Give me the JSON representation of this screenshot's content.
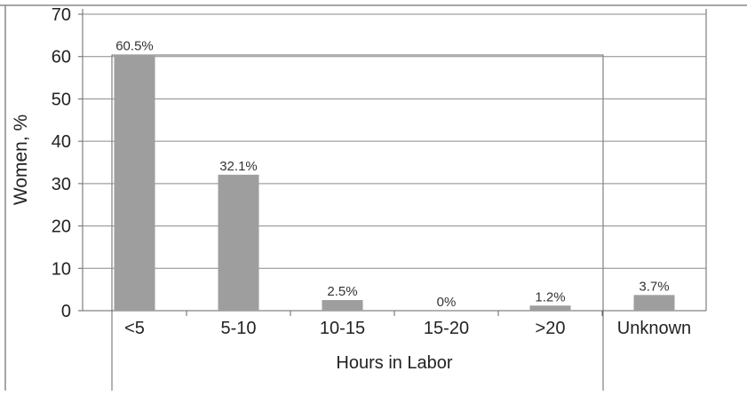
{
  "chart_data": {
    "type": "bar",
    "categories": [
      "<5",
      "5-10",
      "10-15",
      "15-20",
      ">20",
      "Unknown"
    ],
    "values": [
      60.5,
      32.1,
      2.5,
      0,
      1.2,
      3.7
    ],
    "data_labels": [
      "60.5%",
      "32.1%",
      "2.5%",
      "0%",
      "1.2%",
      "3.7%"
    ],
    "xlabel": "Hours in Labor",
    "ylabel": "Women, %",
    "ylim": [
      0,
      70
    ],
    "yticks": [
      "0",
      "10",
      "20",
      "30",
      "40",
      "50",
      "60",
      "70"
    ],
    "grid": true,
    "bar_color": "#9e9e9e"
  }
}
